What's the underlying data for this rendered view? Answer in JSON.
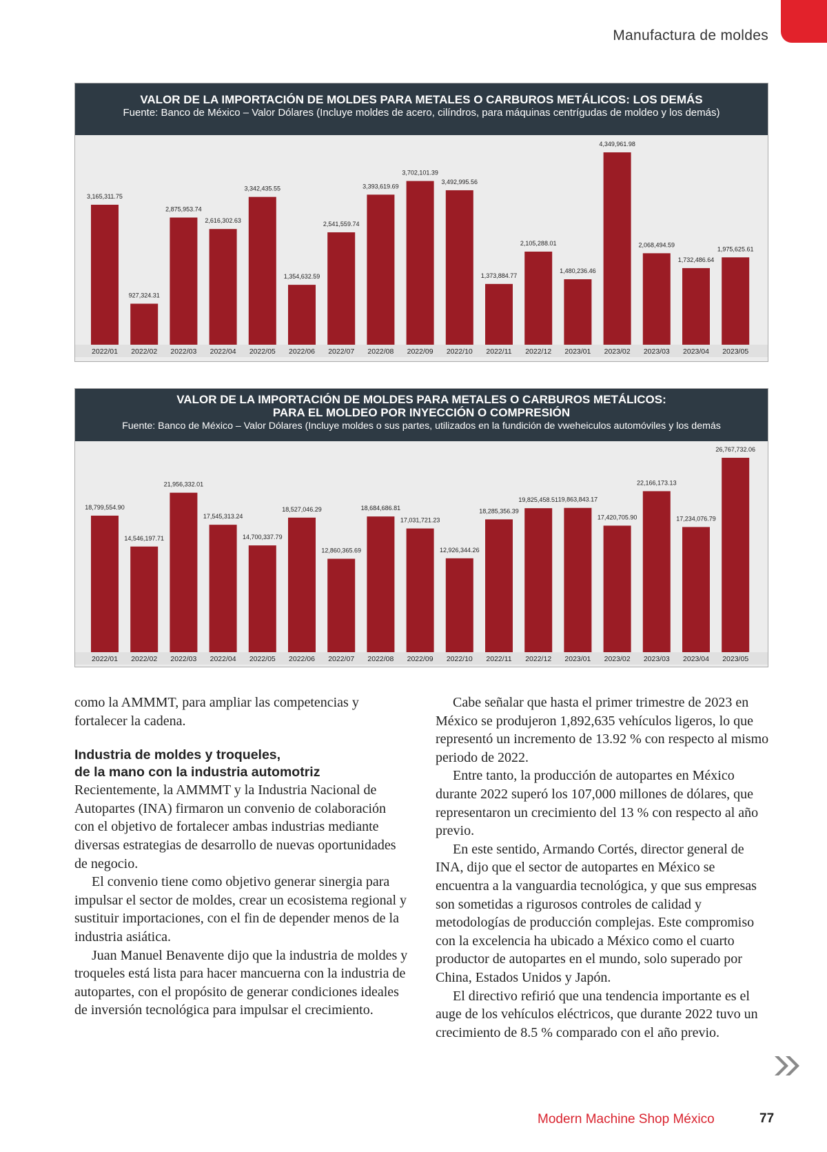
{
  "header": {
    "section": "Manufactura de moldes"
  },
  "chart_data": [
    {
      "type": "bar",
      "title": [
        "VALOR DE LA IMPORTACIÓN DE MOLDES PARA METALES O CARBUROS METÁLICOS: LOS DEMÁS"
      ],
      "subtitle": "Fuente: Banco de México – Valor Dólares (Incluye moldes de acero, cilíndros, para máquinas centrígudas de moldeo y los demás)",
      "categories": [
        "2022/01",
        "2022/02",
        "2022/03",
        "2022/04",
        "2022/05",
        "2022/06",
        "2022/07",
        "2022/08",
        "2022/09",
        "2022/10",
        "2022/11",
        "2022/12",
        "2023/01",
        "2023/02",
        "2023/03",
        "2023/04",
        "2023/05"
      ],
      "values": [
        3165311.75,
        927324.31,
        2875953.74,
        2616302.63,
        3342435.55,
        1354632.59,
        2541559.74,
        3393619.69,
        3702101.39,
        3492995.56,
        1373884.77,
        2105288.01,
        1480236.46,
        4349961.98,
        2068494.59,
        1732486.64,
        1975625.61
      ],
      "value_labels": [
        "3,165,311.75",
        "927,324.31",
        "2,875,953.74",
        "2,616,302.63",
        "3,342,435.55",
        "1,354,632.59",
        "2,541,559.74",
        "3,393,619.69",
        "3,702,101.39",
        "3,492,995.56",
        "1,373,884.77",
        "2,105,288.01",
        "1,480,236.46",
        "4,349,961.98",
        "2,068,494.59",
        "1,732,486.64",
        "1,975,625.61"
      ],
      "color": "#9b1c25"
    },
    {
      "type": "bar",
      "title": [
        "VALOR DE LA IMPORTACIÓN DE MOLDES PARA METALES O CARBUROS METÁLICOS:",
        "PARA EL MOLDEO POR INYECCIÓN O COMPRESIÓN"
      ],
      "subtitle": "Fuente: Banco de México – Valor Dólares (Incluye moldes o sus partes, utilizados en la fundición de vweheiculos automóviles y los demás",
      "categories": [
        "2022/01",
        "2022/02",
        "2022/03",
        "2022/04",
        "2022/05",
        "2022/06",
        "2022/07",
        "2022/08",
        "2022/09",
        "2022/10",
        "2022/11",
        "2022/12",
        "2023/01",
        "2023/02",
        "2023/03",
        "2023/04",
        "2023/05"
      ],
      "values": [
        18799554.9,
        14546197.71,
        21956332.01,
        17545313.24,
        14700337.79,
        18527046.29,
        12860365.69,
        18684686.81,
        17031721.23,
        12926344.26,
        18285356.39,
        19825458.51,
        19863843.17,
        17420705.9,
        22166173.13,
        17234076.79,
        26767732.06
      ],
      "value_labels": [
        "18,799,554.90",
        "14,546,197.71",
        "21,956,332.01",
        "17,545,313.24",
        "14,700,337.79",
        "18,527,046.29",
        "12,860,365.69",
        "18,684,686.81",
        "17,031,721.23",
        "12,926,344.26",
        "18,285,356.39",
        "19,825,458.51",
        "19,863,843.17",
        "17,420,705.90",
        "22,166,173.13",
        "17,234,076.79",
        "26,767,732.06"
      ],
      "color": "#9b1c25"
    }
  ],
  "article": {
    "intro": "como la AMMMT, para ampliar las competencias y fortalecer la cadena.",
    "heading": [
      "Industria de moldes y troqueles,",
      "de la mano con la industria automotriz"
    ],
    "left": [
      "Recientemente, la AMMMT y la Industria Nacional de Autopartes (INA) firmaron un convenio de colaboración con el objetivo de fortalecer ambas industrias mediante diversas estrategias de desarrollo de nuevas oportunidades de negocio.",
      "El convenio tiene como objetivo generar sinergia para impulsar el sector de moldes, crear un ecosistema regional y sustituir importaciones, con el fin de depender menos de la industria asiática.",
      "Juan Manuel Benavente dijo que la industria de moldes y troqueles está lista para hacer mancuerna con la industria de autopartes, con el propósito de generar condiciones ideales de inversión tecnológica para impulsar el crecimiento."
    ],
    "right": [
      "Cabe señalar que hasta el primer trimestre de 2023 en México se produjeron 1,892,635 vehículos ligeros, lo que representó un incremento de 13.92 % con respecto al mismo periodo de 2022.",
      "Entre tanto, la producción de autopartes en México durante 2022 superó los 107,000 millones de dólares, que representaron un crecimiento del 13 % con respecto al año previo.",
      "En este sentido, Armando Cortés, director general de INA, dijo que el sector de autopartes en México se encuentra a la vanguardia tecnológica, y que sus empresas son sometidas a rigurosos controles de calidad y metodologías de producción complejas. Este compromiso con la excelencia ha ubicado a México como el cuarto productor de autopartes en el mundo, solo superado por China, Estados Unidos y Japón.",
      "El directivo refirió que una tendencia importante es el auge de los vehículos eléctricos, que durante 2022 tuvo un crecimiento de 8.5 % comparado con el año previo."
    ]
  },
  "footer": {
    "magazine": "Modern Machine Shop México",
    "page": "77"
  }
}
